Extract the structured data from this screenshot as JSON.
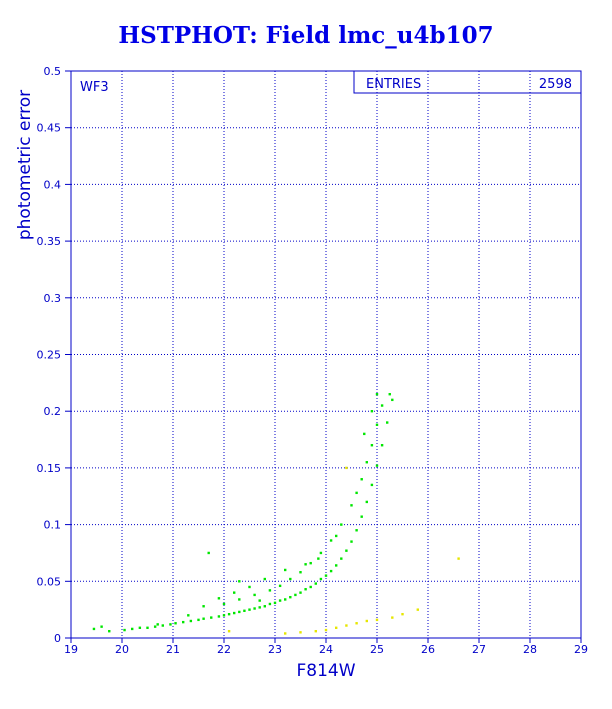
{
  "title": "HSTPHOT: Field lmc_u4b107",
  "panel_label": "WF3",
  "stats": {
    "label": "ENTRIES",
    "value": "2598"
  },
  "colors": {
    "axes": "#0000c8",
    "grid": "#0000c8",
    "title": "#0000e6",
    "main_points": "#00e600",
    "minor_points": "#e6e600"
  },
  "chart_data": {
    "type": "scatter",
    "xlabel": "F814W",
    "ylabel": "photometric error",
    "xlim": [
      19,
      29
    ],
    "ylim": [
      0,
      0.5
    ],
    "xticks": [
      19,
      20,
      21,
      22,
      23,
      24,
      25,
      26,
      27,
      28,
      29
    ],
    "yticks": [
      0,
      0.05,
      0.1,
      0.15,
      0.2,
      0.25,
      0.3,
      0.35,
      0.4,
      0.45,
      0.5
    ],
    "grid": true,
    "series": [
      {
        "color": "#00e600",
        "points": [
          [
            19.45,
            0.008
          ],
          [
            19.6,
            0.01
          ],
          [
            19.75,
            0.006
          ],
          [
            20.05,
            0.007
          ],
          [
            20.2,
            0.008
          ],
          [
            20.35,
            0.009
          ],
          [
            20.5,
            0.009
          ],
          [
            20.65,
            0.01
          ],
          [
            20.8,
            0.011
          ],
          [
            20.95,
            0.012
          ],
          [
            21.05,
            0.013
          ],
          [
            21.2,
            0.014
          ],
          [
            21.35,
            0.015
          ],
          [
            21.5,
            0.016
          ],
          [
            21.6,
            0.017
          ],
          [
            21.75,
            0.018
          ],
          [
            21.9,
            0.019
          ],
          [
            22.0,
            0.02
          ],
          [
            22.1,
            0.021
          ],
          [
            22.2,
            0.022
          ],
          [
            22.3,
            0.023
          ],
          [
            22.4,
            0.024
          ],
          [
            22.5,
            0.025
          ],
          [
            22.6,
            0.026
          ],
          [
            22.7,
            0.027
          ],
          [
            22.8,
            0.028
          ],
          [
            22.9,
            0.03
          ],
          [
            23.0,
            0.031
          ],
          [
            23.1,
            0.033
          ],
          [
            23.2,
            0.034
          ],
          [
            23.3,
            0.036
          ],
          [
            23.4,
            0.038
          ],
          [
            23.5,
            0.04
          ],
          [
            23.6,
            0.043
          ],
          [
            23.7,
            0.045
          ],
          [
            23.8,
            0.048
          ],
          [
            23.9,
            0.052
          ],
          [
            24.0,
            0.055
          ],
          [
            24.1,
            0.059
          ],
          [
            24.2,
            0.064
          ],
          [
            24.3,
            0.07
          ],
          [
            24.4,
            0.077
          ],
          [
            24.5,
            0.085
          ],
          [
            24.6,
            0.095
          ],
          [
            24.7,
            0.107
          ],
          [
            24.8,
            0.12
          ],
          [
            24.9,
            0.135
          ],
          [
            25.0,
            0.152
          ],
          [
            25.1,
            0.17
          ],
          [
            25.2,
            0.19
          ],
          [
            25.3,
            0.21
          ],
          [
            22.0,
            0.03
          ],
          [
            22.3,
            0.034
          ],
          [
            22.6,
            0.038
          ],
          [
            22.9,
            0.042
          ],
          [
            23.1,
            0.046
          ],
          [
            23.3,
            0.052
          ],
          [
            23.5,
            0.058
          ],
          [
            23.7,
            0.066
          ],
          [
            23.9,
            0.075
          ],
          [
            24.1,
            0.086
          ],
          [
            24.3,
            0.1
          ],
          [
            24.5,
            0.117
          ],
          [
            24.6,
            0.128
          ],
          [
            24.7,
            0.14
          ],
          [
            24.8,
            0.155
          ],
          [
            24.9,
            0.17
          ],
          [
            25.0,
            0.188
          ],
          [
            25.1,
            0.205
          ],
          [
            21.6,
            0.028
          ],
          [
            21.9,
            0.035
          ],
          [
            22.2,
            0.04
          ],
          [
            22.5,
            0.045
          ],
          [
            22.8,
            0.052
          ],
          [
            23.2,
            0.06
          ],
          [
            21.7,
            0.075
          ],
          [
            22.3,
            0.05
          ],
          [
            23.6,
            0.065
          ],
          [
            24.2,
            0.09
          ],
          [
            24.9,
            0.2
          ],
          [
            25.0,
            0.215
          ],
          [
            24.75,
            0.18
          ],
          [
            23.85,
            0.07
          ],
          [
            22.7,
            0.033
          ],
          [
            21.3,
            0.02
          ],
          [
            20.7,
            0.012
          ],
          [
            25.25,
            0.215
          ]
        ]
      },
      {
        "color": "#e6e600",
        "points": [
          [
            23.2,
            0.004
          ],
          [
            23.5,
            0.005
          ],
          [
            23.8,
            0.006
          ],
          [
            24.0,
            0.007
          ],
          [
            24.2,
            0.009
          ],
          [
            24.4,
            0.011
          ],
          [
            24.6,
            0.013
          ],
          [
            24.8,
            0.015
          ],
          [
            25.0,
            0.016
          ],
          [
            25.3,
            0.018
          ],
          [
            25.5,
            0.021
          ],
          [
            25.8,
            0.025
          ],
          [
            24.4,
            0.15
          ],
          [
            26.6,
            0.07
          ],
          [
            22.1,
            0.006
          ]
        ]
      }
    ]
  }
}
